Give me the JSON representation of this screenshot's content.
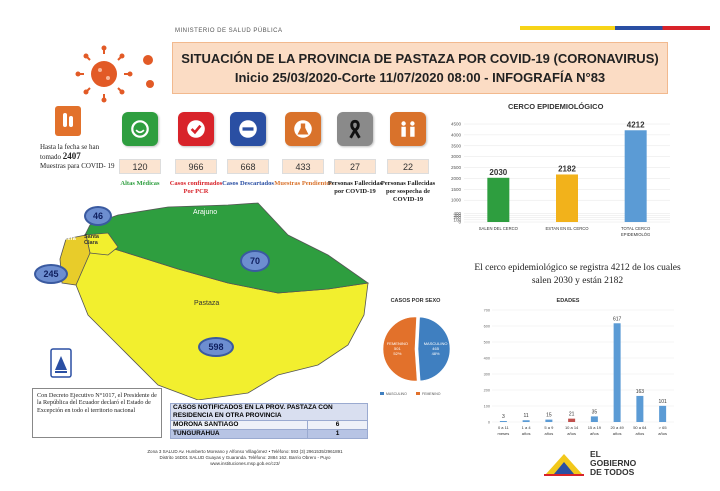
{
  "header": {
    "ministry": "MINISTERIO DE SALUD PÚBLICA",
    "title_line1": "SITUACIÓN DE LA PROVINCIA DE PASTAZA POR COVID-19 (CORONAVIRUS)",
    "title_line2": "Inicio 25/03/2020-Corte 11/07/2020 08:00 - INFOGRAFÍA N°83"
  },
  "summary": {
    "line1": "Hasta la fecha se han tomado",
    "count": "2407",
    "line2": "Muestras para COVID- 19"
  },
  "stats": [
    {
      "value": "120",
      "label": "Altas Médicas",
      "color": "#2e9e3f",
      "label_color": "#2e9e3f",
      "icon": "smile-icon"
    },
    {
      "value": "966",
      "label": "Casos confirmados Por PCR",
      "color": "#d8232a",
      "label_color": "#d8232a",
      "icon": "check-icon"
    },
    {
      "value": "668",
      "label": "Casos Descartados",
      "color": "#2a4fa3",
      "label_color": "#2a4fa3",
      "icon": "minus-icon"
    },
    {
      "value": "433",
      "label": "Muestras Pendientes",
      "color": "#d9722b",
      "label_color": "#d9722b",
      "icon": "flask-icon"
    },
    {
      "value": "27",
      "label": "Personas Fallecidas por COVID-19",
      "color": "#8a8a8a",
      "label_color": "#222222",
      "icon": "ribbon-icon"
    },
    {
      "value": "22",
      "label": "Personas Fallecidas por sospecha de COVID-19",
      "color": "#d9722b",
      "label_color": "#222222",
      "icon": "people-icon"
    }
  ],
  "cerco": {
    "title": "CERCO  EPIDEMIOLÓGICO",
    "note": "El cerco epidemiológico se registra 4212 de los cuales salen 2030  y están 2182"
  },
  "map": {
    "regions": [
      {
        "name": "Arajuno",
        "value": "70"
      },
      {
        "name": "Pastaza",
        "value": "598"
      },
      {
        "name": "Mera",
        "value": "245"
      },
      {
        "name": "Santa Clara",
        "value": "46"
      }
    ]
  },
  "pie_title": "CASOS POR SEXO",
  "pie": [
    {
      "name": "MASCULINO",
      "value": 465,
      "pct": "48%",
      "color": "#3f7fc0"
    },
    {
      "name": "FEMENINO",
      "value": 501,
      "pct": "52%",
      "color": "#e2712b"
    }
  ],
  "decree": "Con Decreto Ejecutivo N°1017, el Presidente de la República del Ecuador declaró el Estado de Excepción en todo el territorio nacional",
  "cases_table": {
    "header": "CASOS NOTIFICADOS EN LA PROV. PASTAZA CON RESIDENCIA EN OTRA PROVINCIA",
    "rows": [
      {
        "province": "MORONA SANTIAGO",
        "count": "6"
      },
      {
        "province": "TUNGURAHUA",
        "count": "1"
      }
    ]
  },
  "footer": {
    "line1": "Zona 3 SALUD Av. Humberto Moreano y Alfonso Villagómez • Teléfono: 593 (3) 2961535/2961891",
    "line2": "Distrito 16D01 SALUD Guayas y Guaranda. Teléfono: 2884 162. Barrio Obrero - Puyo",
    "line3": "www.instituciones.msp.gob.ec/cz3/"
  },
  "gob": {
    "line1": "EL",
    "line2": "GOBIERNO",
    "line3": "DE TODOS"
  },
  "chart_data": [
    {
      "type": "bar",
      "title": "CERCO  EPIDEMIOLÓGICO",
      "categories": [
        "SALEN DEL  CERCO",
        "ESTAN EN EL CERCO",
        "TOTAL  CERCO EPIDEMIOLÓG"
      ],
      "values": [
        2030,
        2182,
        4212
      ],
      "colors": [
        "#2e9e3f",
        "#f2b21b",
        "#5b9bd5"
      ],
      "yticks": [
        0,
        100,
        200,
        300,
        400,
        1000,
        1500,
        2000,
        2500,
        3000,
        3500,
        4000,
        4500
      ],
      "ylim": [
        0,
        4500
      ]
    },
    {
      "type": "bar",
      "title": "EDADES",
      "categories": [
        "0 a 11 meses",
        "1 a 4 años",
        "5 a 9 años",
        "10 a 14 años",
        "15 a 19 años",
        "20 a 49 años",
        "50 a 64 años",
        "> 65 años"
      ],
      "values": [
        3,
        11,
        15,
        21,
        35,
        617,
        163,
        101
      ],
      "colors": [
        "#5b9bd5",
        "#5b9bd5",
        "#5b9bd5",
        "#c0504d",
        "#5b9bd5",
        "#5b9bd5",
        "#5b9bd5",
        "#5b9bd5"
      ],
      "yticks": [
        0,
        100,
        200,
        300,
        400,
        500,
        600,
        700
      ],
      "ylim": [
        0,
        700
      ]
    }
  ]
}
